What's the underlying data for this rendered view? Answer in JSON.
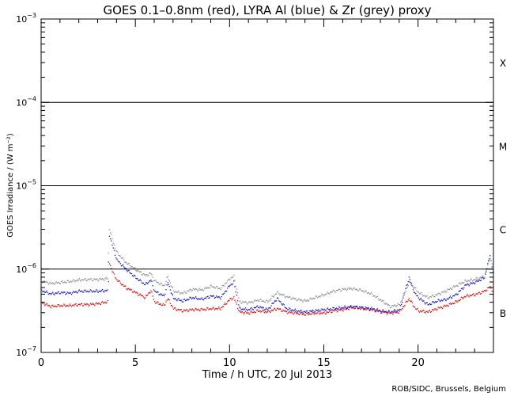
{
  "chart_data": {
    "type": "scatter",
    "title": "GOES 0.1–0.8nm (red), LYRA Al (blue) & Zr (grey) proxy",
    "xlabel": "Time / h UTC, 20 Jul 2013",
    "ylabel": "GOES Irradiance / (W m⁻²)",
    "xlim": [
      0,
      24
    ],
    "ylim": [
      1e-07,
      0.001
    ],
    "yscale": "log",
    "x_ticks": [
      0,
      5,
      10,
      15,
      20
    ],
    "y_ticks": [
      {
        "base": "10",
        "exp": "−7",
        "value": 1e-07
      },
      {
        "base": "10",
        "exp": "−6",
        "value": 1e-06
      },
      {
        "base": "10",
        "exp": "−5",
        "value": 1e-05
      },
      {
        "base": "10",
        "exp": "−4",
        "value": 0.0001
      },
      {
        "base": "10",
        "exp": "−3",
        "value": 0.001
      }
    ],
    "flare_class_lines": [
      1e-06,
      1e-05,
      0.0001
    ],
    "flare_classes": [
      {
        "label": "B",
        "value": 3e-07
      },
      {
        "label": "C",
        "value": 3e-06
      },
      {
        "label": "M",
        "value": 3e-05
      },
      {
        "label": "X",
        "value": 0.0003
      }
    ],
    "series": [
      {
        "name": "GOES 0.1-0.8nm",
        "color": "#e00000",
        "points": [
          [
            0,
            4e-07
          ],
          [
            0.5,
            3.6e-07
          ],
          [
            1,
            3.7e-07
          ],
          [
            1.5,
            3.7e-07
          ],
          [
            2,
            3.8e-07
          ],
          [
            2.5,
            3.8e-07
          ],
          [
            3,
            3.9e-07
          ],
          [
            3.5,
            4.1e-07
          ],
          [
            3.6,
            1.2e-06
          ],
          [
            3.8,
            9e-07
          ],
          [
            4,
            7.5e-07
          ],
          [
            4.5,
            6e-07
          ],
          [
            5,
            5.3e-07
          ],
          [
            5.5,
            4.6e-07
          ],
          [
            5.8,
            5.6e-07
          ],
          [
            6,
            4.1e-07
          ],
          [
            6.5,
            3.7e-07
          ],
          [
            6.7,
            4.5e-07
          ],
          [
            7,
            3.4e-07
          ],
          [
            7.5,
            3.2e-07
          ],
          [
            8,
            3.3e-07
          ],
          [
            8.5,
            3.3e-07
          ],
          [
            9,
            3.4e-07
          ],
          [
            9.5,
            3.4e-07
          ],
          [
            10,
            4.4e-07
          ],
          [
            10.2,
            4.6e-07
          ],
          [
            10.5,
            3.1e-07
          ],
          [
            11,
            3e-07
          ],
          [
            11.5,
            3.2e-07
          ],
          [
            12,
            3.1e-07
          ],
          [
            12.5,
            3.4e-07
          ],
          [
            13,
            3.1e-07
          ],
          [
            13.5,
            3e-07
          ],
          [
            14,
            2.9e-07
          ],
          [
            14.5,
            3e-07
          ],
          [
            15,
            3e-07
          ],
          [
            15.5,
            3.2e-07
          ],
          [
            16,
            3.3e-07
          ],
          [
            16.5,
            3.5e-07
          ],
          [
            17,
            3.4e-07
          ],
          [
            17.5,
            3.3e-07
          ],
          [
            18,
            3.1e-07
          ],
          [
            18.5,
            3e-07
          ],
          [
            19,
            3.1e-07
          ],
          [
            19.5,
            4.5e-07
          ],
          [
            19.8,
            3.5e-07
          ],
          [
            20,
            3.2e-07
          ],
          [
            20.5,
            3.1e-07
          ],
          [
            21,
            3.4e-07
          ],
          [
            21.5,
            3.7e-07
          ],
          [
            22,
            4.1e-07
          ],
          [
            22.5,
            4.8e-07
          ],
          [
            23,
            5e-07
          ],
          [
            23.5,
            5.5e-07
          ],
          [
            23.8,
            6.2e-07
          ],
          [
            24,
            5.3e-07
          ]
        ]
      },
      {
        "name": "LYRA Al",
        "color": "#1010d0",
        "points": [
          [
            0,
            5.6e-07
          ],
          [
            0.5,
            5.1e-07
          ],
          [
            1,
            5.3e-07
          ],
          [
            1.5,
            5.2e-07
          ],
          [
            2,
            5.5e-07
          ],
          [
            2.5,
            5.5e-07
          ],
          [
            3,
            5.5e-07
          ],
          [
            3.5,
            5.6e-07
          ],
          [
            3.6,
            2.6e-06
          ],
          [
            3.8,
            1.8e-06
          ],
          [
            4,
            1.3e-06
          ],
          [
            4.5,
            1e-06
          ],
          [
            5,
            8e-07
          ],
          [
            5.5,
            6.6e-07
          ],
          [
            5.8,
            7.5e-07
          ],
          [
            6,
            5.5e-07
          ],
          [
            6.5,
            4.8e-07
          ],
          [
            6.7,
            7e-07
          ],
          [
            7,
            4.5e-07
          ],
          [
            7.5,
            4.2e-07
          ],
          [
            8,
            4.6e-07
          ],
          [
            8.5,
            4.4e-07
          ],
          [
            9,
            4.8e-07
          ],
          [
            9.5,
            4.6e-07
          ],
          [
            10,
            6.5e-07
          ],
          [
            10.2,
            7e-07
          ],
          [
            10.5,
            3.4e-07
          ],
          [
            11,
            3.3e-07
          ],
          [
            11.5,
            3.6e-07
          ],
          [
            12,
            3.3e-07
          ],
          [
            12.5,
            4.5e-07
          ],
          [
            13,
            3.4e-07
          ],
          [
            13.5,
            3.2e-07
          ],
          [
            14,
            3.1e-07
          ],
          [
            14.5,
            3.2e-07
          ],
          [
            15,
            3.3e-07
          ],
          [
            15.5,
            3.4e-07
          ],
          [
            16,
            3.5e-07
          ],
          [
            16.5,
            3.6e-07
          ],
          [
            17,
            3.5e-07
          ],
          [
            17.5,
            3.4e-07
          ],
          [
            18,
            3.2e-07
          ],
          [
            18.5,
            3.1e-07
          ],
          [
            19,
            3.3e-07
          ],
          [
            19.5,
            8e-07
          ],
          [
            19.8,
            5.2e-07
          ],
          [
            20,
            4.6e-07
          ],
          [
            20.5,
            3.8e-07
          ],
          [
            21,
            4.2e-07
          ],
          [
            21.5,
            4.4e-07
          ],
          [
            22,
            5e-07
          ],
          [
            22.5,
            6.5e-07
          ],
          [
            23,
            7e-07
          ],
          [
            23.5,
            8e-07
          ],
          [
            23.8,
            1.5e-06
          ],
          [
            24,
            8e-07
          ]
        ]
      },
      {
        "name": "LYRA Zr",
        "color": "#8c8c8c",
        "points": [
          [
            0,
            7.3e-07
          ],
          [
            0.5,
            6.8e-07
          ],
          [
            1,
            7e-07
          ],
          [
            1.5,
            7.2e-07
          ],
          [
            2,
            7.5e-07
          ],
          [
            2.5,
            7.6e-07
          ],
          [
            3,
            7.6e-07
          ],
          [
            3.5,
            7.8e-07
          ],
          [
            3.6,
            3.1e-06
          ],
          [
            3.8,
            2.1e-06
          ],
          [
            4,
            1.6e-06
          ],
          [
            4.5,
            1.2e-06
          ],
          [
            5,
            1e-06
          ],
          [
            5.5,
            8.5e-07
          ],
          [
            5.8,
            9e-07
          ],
          [
            6,
            7.3e-07
          ],
          [
            6.5,
            6.4e-07
          ],
          [
            6.7,
            8.2e-07
          ],
          [
            7,
            5.5e-07
          ],
          [
            7.5,
            5.2e-07
          ],
          [
            8,
            5.8e-07
          ],
          [
            8.5,
            5.7e-07
          ],
          [
            9,
            6.3e-07
          ],
          [
            9.5,
            5.9e-07
          ],
          [
            10,
            7.8e-07
          ],
          [
            10.2,
            8.3e-07
          ],
          [
            10.5,
            4.1e-07
          ],
          [
            11,
            4e-07
          ],
          [
            11.5,
            4.3e-07
          ],
          [
            12,
            4.1e-07
          ],
          [
            12.5,
            5.3e-07
          ],
          [
            13,
            4.7e-07
          ],
          [
            13.5,
            4.4e-07
          ],
          [
            14,
            4.2e-07
          ],
          [
            14.5,
            4.6e-07
          ],
          [
            15,
            5e-07
          ],
          [
            15.5,
            5.5e-07
          ],
          [
            16,
            5.8e-07
          ],
          [
            16.5,
            5.9e-07
          ],
          [
            17,
            5.6e-07
          ],
          [
            17.5,
            5.1e-07
          ],
          [
            18,
            4.3e-07
          ],
          [
            18.5,
            3.6e-07
          ],
          [
            19,
            3.8e-07
          ],
          [
            19.5,
            7e-07
          ],
          [
            19.8,
            6e-07
          ],
          [
            20,
            5.3e-07
          ],
          [
            20.5,
            4.6e-07
          ],
          [
            21,
            5e-07
          ],
          [
            21.5,
            5.6e-07
          ],
          [
            22,
            6.4e-07
          ],
          [
            22.5,
            7.3e-07
          ],
          [
            23,
            7.6e-07
          ],
          [
            23.5,
            8.3e-07
          ],
          [
            23.8,
            1.4e-06
          ],
          [
            24,
            9.5e-07
          ]
        ]
      }
    ],
    "credit": "ROB/SIDC, Brussels, Belgium"
  }
}
